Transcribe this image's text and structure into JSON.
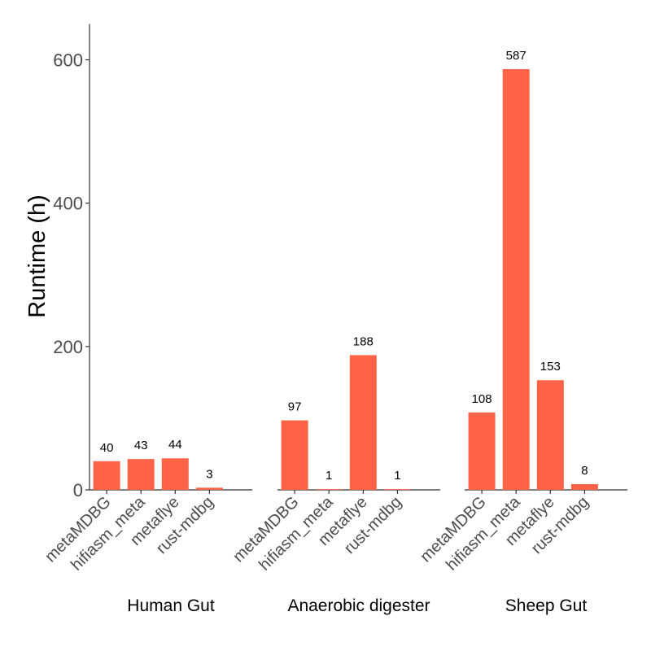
{
  "chart_data": {
    "type": "bar",
    "ylabel": "Runtime (h)",
    "xlabel": "",
    "ylim": [
      0,
      650
    ],
    "yticks": [
      0,
      200,
      400,
      600
    ],
    "yticks_text": [
      "0",
      "200",
      "400",
      "600"
    ],
    "grid": false,
    "legend": "none",
    "bar_color": "#FF6347",
    "categories": [
      "metaMDBG",
      "hifiasm_meta",
      "metaflye",
      "rust-mdbg"
    ],
    "facets": [
      {
        "name": "Human Gut",
        "values": [
          40,
          43,
          44,
          3
        ],
        "labels": [
          "40",
          "43",
          "44",
          "3"
        ]
      },
      {
        "name": "Anaerobic digester",
        "values": [
          97,
          1,
          188,
          1
        ],
        "labels": [
          "97",
          "1",
          "188",
          "1"
        ]
      },
      {
        "name": "Sheep Gut",
        "values": [
          108,
          587,
          153,
          8
        ],
        "labels": [
          "108",
          "587",
          "153",
          "8"
        ]
      }
    ]
  }
}
